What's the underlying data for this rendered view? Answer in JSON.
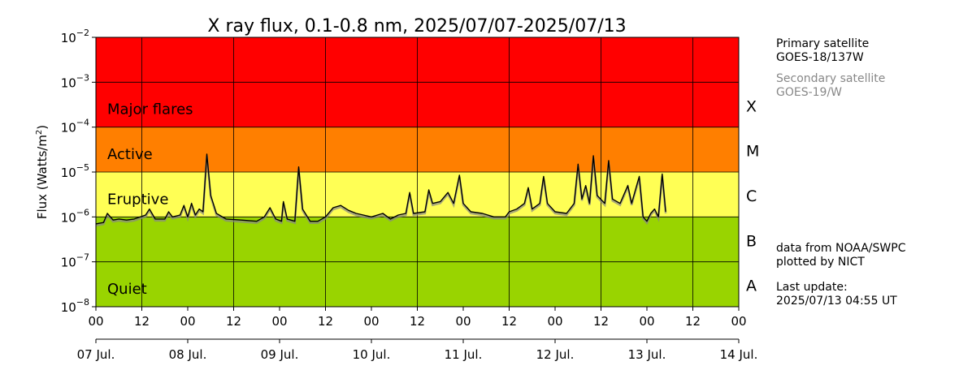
{
  "chart_data": {
    "type": "line",
    "title": "X ray flux, 0.1-0.8 nm, 2025/07/07-2025/07/13",
    "ylabel_main": "Flux (Watts/m",
    "ylabel_sup": "2",
    "ylabel_close": ")",
    "y_scale": "log",
    "ylim": [
      1e-08,
      0.01
    ],
    "y_ticks": [
      {
        "value": 1e-08,
        "base": "10",
        "exp": "−8"
      },
      {
        "value": 1e-07,
        "base": "10",
        "exp": "−7"
      },
      {
        "value": 1e-06,
        "base": "10",
        "exp": "−6"
      },
      {
        "value": 1e-05,
        "base": "10",
        "exp": "−5"
      },
      {
        "value": 0.0001,
        "base": "10",
        "exp": "−4"
      },
      {
        "value": 0.001,
        "base": "10",
        "exp": "−3"
      },
      {
        "value": 0.01,
        "base": "10",
        "exp": "−2"
      }
    ],
    "xlim": [
      "2025-07-07 00:00",
      "2025-07-14 00:00"
    ],
    "x_hour_ticks": [
      "00",
      "12",
      "00",
      "12",
      "00",
      "12",
      "00",
      "12",
      "00",
      "12",
      "00",
      "12",
      "00",
      "12",
      "00"
    ],
    "x_day_ticks": [
      "07 Jul.",
      "08 Jul.",
      "09 Jul.",
      "10 Jul.",
      "11 Jul.",
      "12 Jul.",
      "13 Jul.",
      "14 Jul."
    ],
    "grid": true,
    "bands": [
      {
        "from": 0.0001,
        "to": 0.01,
        "color": "#ff0000",
        "label": "Major flares"
      },
      {
        "from": 1e-05,
        "to": 0.0001,
        "color": "#ff7f00",
        "label": "Active"
      },
      {
        "from": 1e-06,
        "to": 1e-05,
        "color": "#ffff55",
        "label": "Eruptive"
      },
      {
        "from": 1e-08,
        "to": 1e-06,
        "color": "#99d400",
        "label": "Quiet"
      }
    ],
    "classes": [
      {
        "label": "X",
        "value": 0.0003
      },
      {
        "label": "M",
        "value": 3e-05
      },
      {
        "label": "C",
        "value": 3e-06
      },
      {
        "label": "B",
        "value": 3e-07
      },
      {
        "label": "A",
        "value": 3e-08
      }
    ],
    "series": [
      {
        "line_color": "#000000",
        "shadow_color": "#888888",
        "points": [
          {
            "date": "2025-07-07 00:00",
            "y": 7e-07
          },
          {
            "date": "2025-07-07 02:00",
            "y": 7.5e-07
          },
          {
            "date": "2025-07-07 03:00",
            "y": 1.2e-06
          },
          {
            "date": "2025-07-07 04:30",
            "y": 8.5e-07
          },
          {
            "date": "2025-07-07 06:00",
            "y": 9e-07
          },
          {
            "date": "2025-07-07 08:00",
            "y": 8.5e-07
          },
          {
            "date": "2025-07-07 10:00",
            "y": 9e-07
          },
          {
            "date": "2025-07-07 13:00",
            "y": 1.1e-06
          },
          {
            "date": "2025-07-07 14:00",
            "y": 1.5e-06
          },
          {
            "date": "2025-07-07 15:30",
            "y": 9e-07
          },
          {
            "date": "2025-07-07 18:00",
            "y": 9e-07
          },
          {
            "date": "2025-07-07 19:00",
            "y": 1.3e-06
          },
          {
            "date": "2025-07-07 20:00",
            "y": 1e-06
          },
          {
            "date": "2025-07-07 22:00",
            "y": 1.1e-06
          },
          {
            "date": "2025-07-07 23:00",
            "y": 1.8e-06
          },
          {
            "date": "2025-07-08 00:00",
            "y": 1e-06
          },
          {
            "date": "2025-07-08 01:00",
            "y": 2e-06
          },
          {
            "date": "2025-07-08 02:00",
            "y": 1.1e-06
          },
          {
            "date": "2025-07-08 03:00",
            "y": 1.5e-06
          },
          {
            "date": "2025-07-08 04:00",
            "y": 1.3e-06
          },
          {
            "date": "2025-07-08 05:00",
            "y": 2.5e-05
          },
          {
            "date": "2025-07-08 06:00",
            "y": 3e-06
          },
          {
            "date": "2025-07-08 07:30",
            "y": 1.2e-06
          },
          {
            "date": "2025-07-08 10:00",
            "y": 9e-07
          },
          {
            "date": "2025-07-08 14:00",
            "y": 8.5e-07
          },
          {
            "date": "2025-07-08 18:00",
            "y": 8e-07
          },
          {
            "date": "2025-07-08 20:00",
            "y": 1e-06
          },
          {
            "date": "2025-07-08 21:30",
            "y": 1.6e-06
          },
          {
            "date": "2025-07-08 23:00",
            "y": 9e-07
          },
          {
            "date": "2025-07-09 00:30",
            "y": 8e-07
          },
          {
            "date": "2025-07-09 01:00",
            "y": 2.2e-06
          },
          {
            "date": "2025-07-09 02:00",
            "y": 9e-07
          },
          {
            "date": "2025-07-09 04:00",
            "y": 8e-07
          },
          {
            "date": "2025-07-09 05:00",
            "y": 1.3e-05
          },
          {
            "date": "2025-07-09 06:00",
            "y": 1.5e-06
          },
          {
            "date": "2025-07-09 08:00",
            "y": 8e-07
          },
          {
            "date": "2025-07-09 10:00",
            "y": 8e-07
          },
          {
            "date": "2025-07-09 12:00",
            "y": 1e-06
          },
          {
            "date": "2025-07-09 14:00",
            "y": 1.6e-06
          },
          {
            "date": "2025-07-09 16:00",
            "y": 1.8e-06
          },
          {
            "date": "2025-07-09 18:00",
            "y": 1.4e-06
          },
          {
            "date": "2025-07-09 20:00",
            "y": 1.2e-06
          },
          {
            "date": "2025-07-10 00:00",
            "y": 1e-06
          },
          {
            "date": "2025-07-10 03:00",
            "y": 1.2e-06
          },
          {
            "date": "2025-07-10 05:00",
            "y": 9e-07
          },
          {
            "date": "2025-07-10 07:00",
            "y": 1.1e-06
          },
          {
            "date": "2025-07-10 09:00",
            "y": 1.2e-06
          },
          {
            "date": "2025-07-10 10:00",
            "y": 3.5e-06
          },
          {
            "date": "2025-07-10 11:00",
            "y": 1.2e-06
          },
          {
            "date": "2025-07-10 14:00",
            "y": 1.3e-06
          },
          {
            "date": "2025-07-10 15:00",
            "y": 4e-06
          },
          {
            "date": "2025-07-10 16:00",
            "y": 2e-06
          },
          {
            "date": "2025-07-10 18:00",
            "y": 2.2e-06
          },
          {
            "date": "2025-07-10 20:00",
            "y": 3.5e-06
          },
          {
            "date": "2025-07-10 21:30",
            "y": 2e-06
          },
          {
            "date": "2025-07-10 23:00",
            "y": 8.5e-06
          },
          {
            "date": "2025-07-11 00:00",
            "y": 2e-06
          },
          {
            "date": "2025-07-11 02:00",
            "y": 1.3e-06
          },
          {
            "date": "2025-07-11 05:00",
            "y": 1.2e-06
          },
          {
            "date": "2025-07-11 08:00",
            "y": 1e-06
          },
          {
            "date": "2025-07-11 11:00",
            "y": 1e-06
          },
          {
            "date": "2025-07-11 12:00",
            "y": 1.3e-06
          },
          {
            "date": "2025-07-11 14:00",
            "y": 1.5e-06
          },
          {
            "date": "2025-07-11 16:00",
            "y": 2e-06
          },
          {
            "date": "2025-07-11 17:00",
            "y": 4.5e-06
          },
          {
            "date": "2025-07-11 18:00",
            "y": 1.5e-06
          },
          {
            "date": "2025-07-11 20:00",
            "y": 2e-06
          },
          {
            "date": "2025-07-11 21:00",
            "y": 8e-06
          },
          {
            "date": "2025-07-11 22:00",
            "y": 2e-06
          },
          {
            "date": "2025-07-12 00:00",
            "y": 1.3e-06
          },
          {
            "date": "2025-07-12 03:00",
            "y": 1.2e-06
          },
          {
            "date": "2025-07-12 05:00",
            "y": 2e-06
          },
          {
            "date": "2025-07-12 06:00",
            "y": 1.5e-05
          },
          {
            "date": "2025-07-12 07:00",
            "y": 2.5e-06
          },
          {
            "date": "2025-07-12 08:00",
            "y": 5e-06
          },
          {
            "date": "2025-07-12 09:00",
            "y": 2e-06
          },
          {
            "date": "2025-07-12 10:00",
            "y": 2.3e-05
          },
          {
            "date": "2025-07-12 11:00",
            "y": 3e-06
          },
          {
            "date": "2025-07-12 13:00",
            "y": 2e-06
          },
          {
            "date": "2025-07-12 14:00",
            "y": 1.8e-05
          },
          {
            "date": "2025-07-12 15:00",
            "y": 2.5e-06
          },
          {
            "date": "2025-07-12 17:00",
            "y": 2e-06
          },
          {
            "date": "2025-07-12 19:00",
            "y": 5e-06
          },
          {
            "date": "2025-07-12 20:00",
            "y": 2e-06
          },
          {
            "date": "2025-07-12 22:00",
            "y": 8e-06
          },
          {
            "date": "2025-07-12 23:00",
            "y": 1e-06
          },
          {
            "date": "2025-07-13 00:00",
            "y": 8e-07
          },
          {
            "date": "2025-07-13 01:00",
            "y": 1.2e-06
          },
          {
            "date": "2025-07-13 02:00",
            "y": 1.5e-06
          },
          {
            "date": "2025-07-13 03:00",
            "y": 1e-06
          },
          {
            "date": "2025-07-13 04:00",
            "y": 9e-06
          },
          {
            "date": "2025-07-13 04:55",
            "y": 1.3e-06
          }
        ]
      }
    ]
  },
  "side_text": {
    "primary_heading": "Primary satellite",
    "primary_name": "GOES-18/137W",
    "secondary_heading": "Secondary satellite",
    "secondary_name": "GOES-19/W",
    "credit_source": "data from NOAA/SWPC",
    "credit_plot": "plotted by NICT",
    "update_label": "Last update:",
    "update_time": "2025/07/13 04:55 UT"
  },
  "colors": {
    "secondary_text": "#888888"
  }
}
